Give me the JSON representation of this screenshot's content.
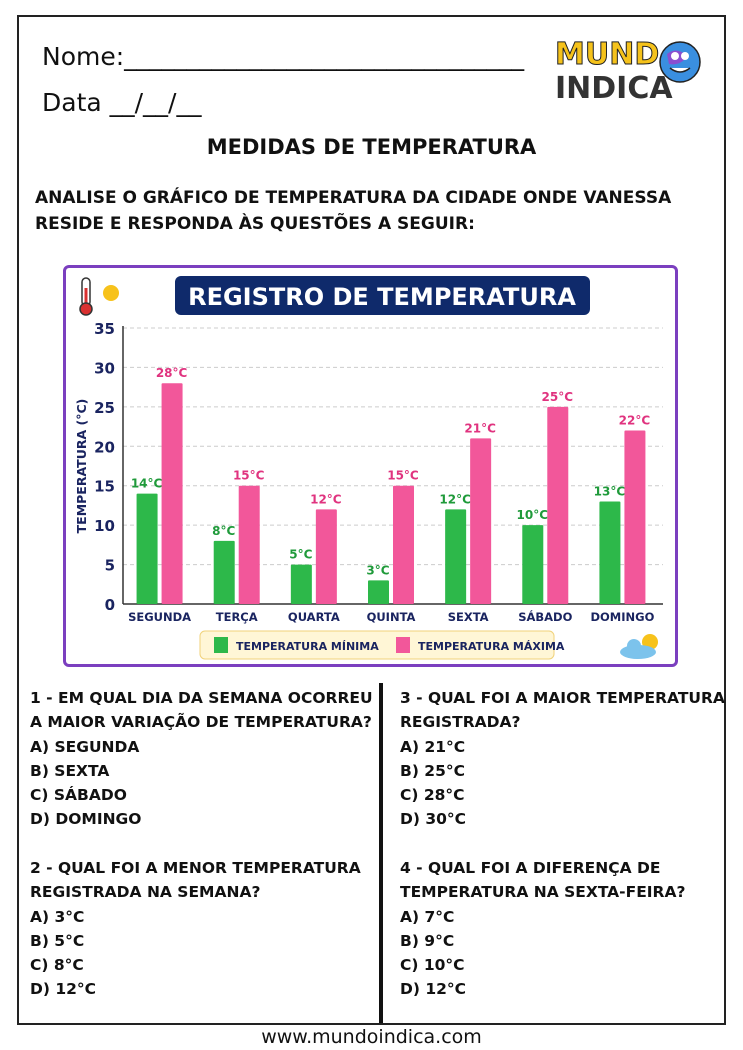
{
  "header": {
    "name_label": "Nome:________________________________",
    "date_label": "Data __/__/__",
    "logo_text": "MUNDO INDICA"
  },
  "title": "MEDIDAS DE TEMPERATURA",
  "instructions": "ANALISE O GRÁFICO DE TEMPERATURA DA CIDADE ONDE VANESSA RESIDE E RESPONDA ÀS QUESTÕES A SEGUIR:",
  "chart_data": {
    "type": "bar",
    "title": "REGISTRO DE TEMPERATURA",
    "ylabel": "TEMPERATURA (°C)",
    "xlabel": "",
    "ylim": [
      0,
      35
    ],
    "yticks": [
      0,
      5,
      10,
      15,
      20,
      25,
      30,
      35
    ],
    "grid": true,
    "legend_position": "bottom",
    "categories": [
      "SEGUNDA",
      "TERÇA",
      "QUARTA",
      "QUINTA",
      "SEXTA",
      "SÁBADO",
      "DOMINGO"
    ],
    "series": [
      {
        "name": "TEMPERATURA MÍNIMA",
        "color": "#2db84a",
        "values": [
          14,
          8,
          5,
          3,
          12,
          10,
          13
        ],
        "labels": [
          "14°C",
          "8°C",
          "5°C",
          "3°C",
          "12°C",
          "10°C",
          "13°C"
        ]
      },
      {
        "name": "TEMPERATURA MÁXIMA",
        "color": "#f2579a",
        "values": [
          28,
          15,
          12,
          15,
          21,
          25,
          22
        ],
        "labels": [
          "28°C",
          "15°C",
          "12°C",
          "15°C",
          "21°C",
          "25°C",
          "22°C"
        ]
      }
    ]
  },
  "questions": [
    {
      "text": "1 - EM QUAL DIA DA SEMANA OCORREU A MAIOR VARIAÇÃO DE TEMPERATURA?",
      "options": [
        "A) SEGUNDA",
        "B) SEXTA",
        "C) SÁBADO",
        "D) DOMINGO"
      ]
    },
    {
      "text": "2 - QUAL FOI A MENOR TEMPERATURA REGISTRADA NA SEMANA?",
      "options": [
        "A) 3°C",
        "B) 5°C",
        "C) 8°C",
        "D) 12°C"
      ]
    },
    {
      "text": "3 - QUAL FOI A MAIOR TEMPERATURA REGISTRADA?",
      "options": [
        "A) 21°C",
        "B) 25°C",
        "C) 28°C",
        "D) 30°C"
      ]
    },
    {
      "text": "4 - QUAL FOI A DIFERENÇA DE TEMPERATURA NA SEXTA-FEIRA?",
      "options": [
        "A) 7°C",
        "B) 9°C",
        "C) 10°C",
        "D) 12°C"
      ]
    }
  ],
  "footer": "www.mundoindica.com"
}
